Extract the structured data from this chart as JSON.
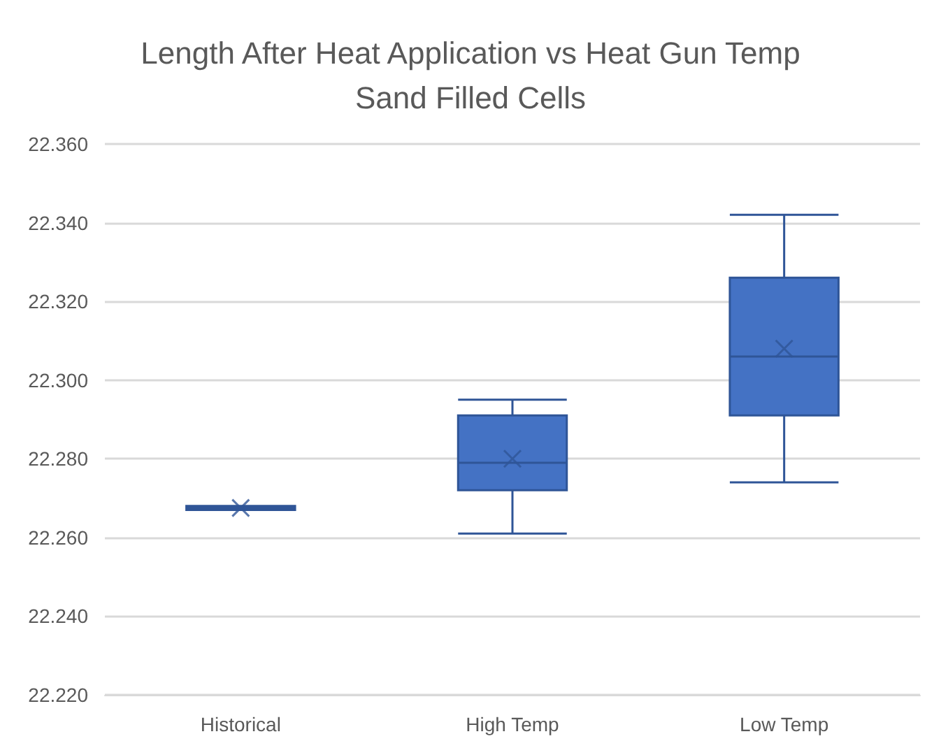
{
  "chart_data": {
    "type": "box",
    "title": "Length After Heat Application vs Heat Gun Temp",
    "subtitle": "Sand Filled Cells",
    "categories": [
      "Historical",
      "High Temp",
      "Low Temp"
    ],
    "boxes": [
      {
        "low": 22.267,
        "q1": 22.267,
        "median": 22.2675,
        "q3": 22.268,
        "high": 22.268,
        "mean": 22.2675
      },
      {
        "low": 22.261,
        "q1": 22.272,
        "median": 22.279,
        "q3": 22.291,
        "high": 22.295,
        "mean": 22.28
      },
      {
        "low": 22.274,
        "q1": 22.291,
        "median": 22.306,
        "q3": 22.326,
        "high": 22.342,
        "mean": 22.308
      }
    ],
    "color": "#4472c4",
    "ylim": [
      22.22,
      22.36
    ],
    "yticks": [
      {
        "value": 22.22,
        "label": "22.220"
      },
      {
        "value": 22.24,
        "label": "22.240"
      },
      {
        "value": 22.26,
        "label": "22.260"
      },
      {
        "value": 22.28,
        "label": "22.280"
      },
      {
        "value": 22.3,
        "label": "22.300"
      },
      {
        "value": 22.32,
        "label": "22.320"
      },
      {
        "value": 22.34,
        "label": "22.340"
      },
      {
        "value": 22.36,
        "label": "22.360"
      }
    ],
    "grid": "y"
  }
}
